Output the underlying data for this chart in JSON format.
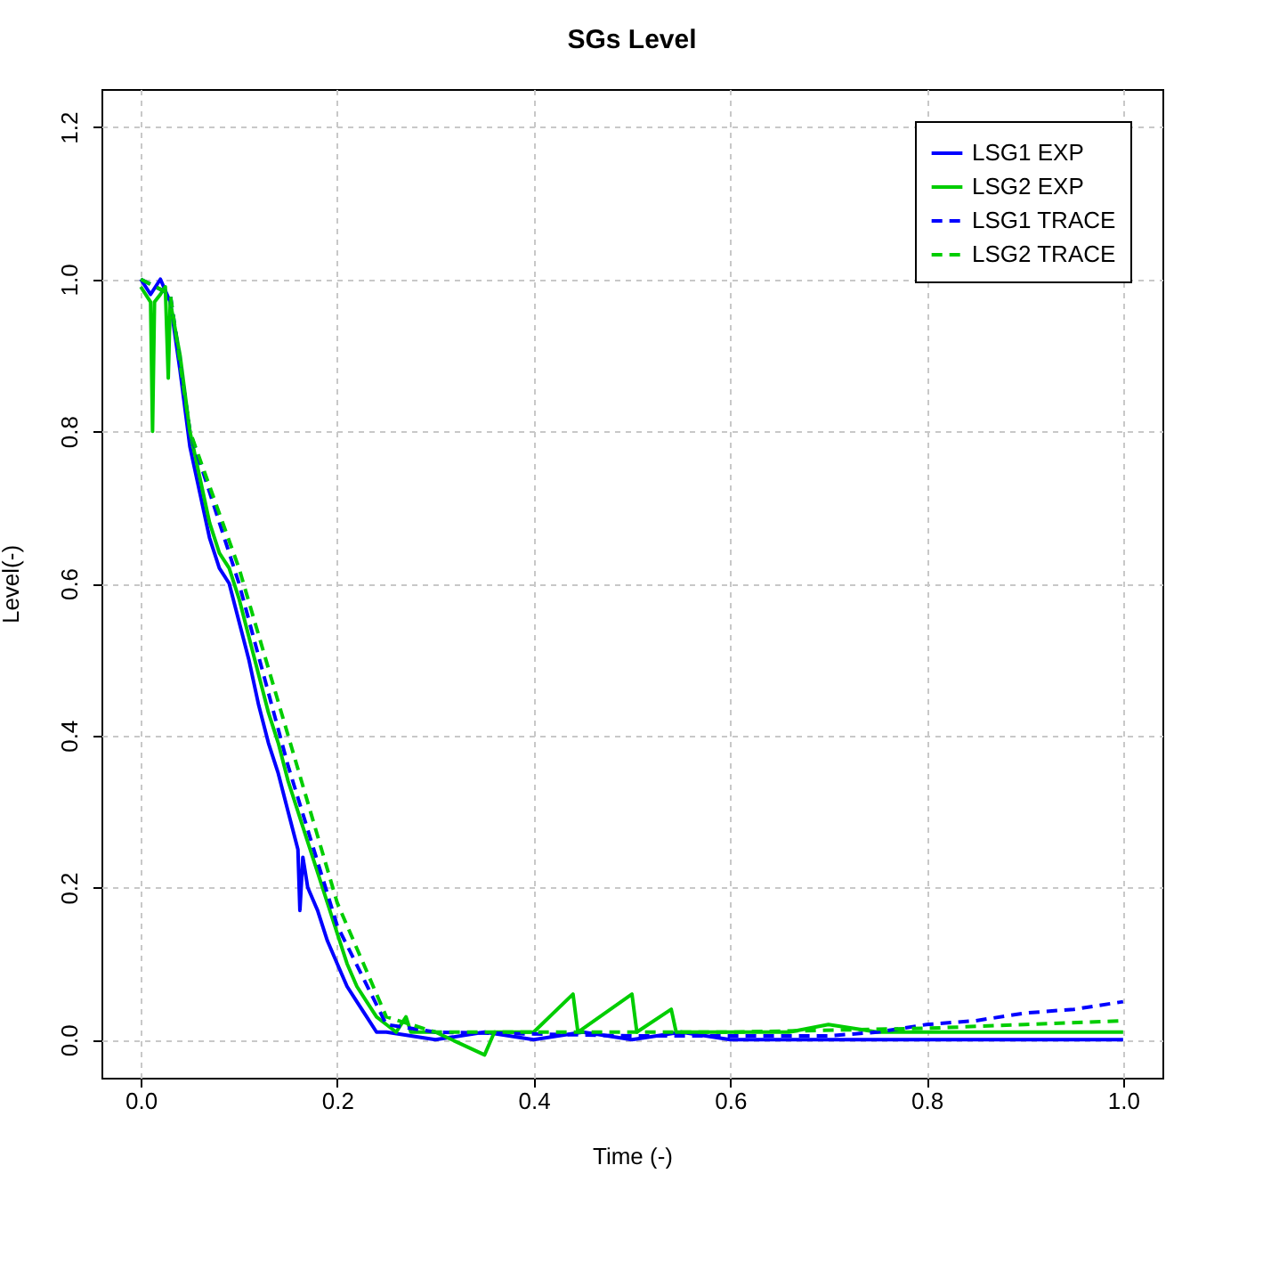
{
  "chart_data": {
    "type": "line",
    "title": "SGs Level",
    "xlabel": "Time (-)",
    "ylabel": "Level(-)",
    "xlim": [
      -0.04,
      1.04
    ],
    "ylim": [
      -0.05,
      1.25
    ],
    "xticks": [
      {
        "value": 0,
        "label": "0.0"
      },
      {
        "value": 0.2,
        "label": "0.2"
      },
      {
        "value": 0.4,
        "label": "0.4"
      },
      {
        "value": 0.6,
        "label": "0.6"
      },
      {
        "value": 0.8,
        "label": "0.8"
      },
      {
        "value": 1,
        "label": "1.0"
      }
    ],
    "yticks": [
      {
        "value": 0,
        "label": "0.0"
      },
      {
        "value": 0.2,
        "label": "0.2"
      },
      {
        "value": 0.4,
        "label": "0.4"
      },
      {
        "value": 0.6,
        "label": "0.6"
      },
      {
        "value": 0.8,
        "label": "0.8"
      },
      {
        "value": 1,
        "label": "1.0"
      },
      {
        "value": 1.2,
        "label": "1.2"
      }
    ],
    "grid": true,
    "legend": "top right",
    "series": [
      {
        "name": "LSG1 EXP",
        "color": "#0000ff",
        "line_style": "solid",
        "x": [
          0,
          0.01,
          0.02,
          0.03,
          0.04,
          0.05,
          0.06,
          0.07,
          0.08,
          0.09,
          0.1,
          0.11,
          0.12,
          0.13,
          0.14,
          0.15,
          0.16,
          0.162,
          0.165,
          0.17,
          0.18,
          0.19,
          0.2,
          0.21,
          0.22,
          0.23,
          0.24,
          0.25,
          0.3,
          0.35,
          0.4,
          0.45,
          0.5,
          0.55,
          0.6,
          0.7,
          0.8,
          0.9,
          1.0
        ],
        "values": [
          1.0,
          0.98,
          1.0,
          0.97,
          0.88,
          0.78,
          0.72,
          0.66,
          0.62,
          0.6,
          0.55,
          0.5,
          0.44,
          0.39,
          0.35,
          0.3,
          0.25,
          0.17,
          0.24,
          0.2,
          0.17,
          0.13,
          0.1,
          0.07,
          0.05,
          0.03,
          0.01,
          0.01,
          0.0,
          0.01,
          0.0,
          0.01,
          0.0,
          0.01,
          0.0,
          0.0,
          0.0,
          0.0,
          0.0
        ]
      },
      {
        "name": "LSG2 EXP",
        "color": "#00cd00",
        "line_style": "solid",
        "x": [
          0,
          0.01,
          0.012,
          0.014,
          0.02,
          0.025,
          0.028,
          0.03,
          0.04,
          0.05,
          0.06,
          0.07,
          0.08,
          0.09,
          0.1,
          0.11,
          0.12,
          0.13,
          0.14,
          0.15,
          0.16,
          0.17,
          0.18,
          0.19,
          0.2,
          0.21,
          0.22,
          0.23,
          0.24,
          0.25,
          0.26,
          0.27,
          0.275,
          0.3,
          0.35,
          0.36,
          0.4,
          0.44,
          0.445,
          0.5,
          0.505,
          0.54,
          0.545,
          0.6,
          0.66,
          0.7,
          0.75,
          0.8,
          0.9,
          1.0
        ],
        "values": [
          0.99,
          0.97,
          0.8,
          0.97,
          0.98,
          0.99,
          0.87,
          0.97,
          0.9,
          0.8,
          0.74,
          0.68,
          0.64,
          0.62,
          0.58,
          0.53,
          0.48,
          0.43,
          0.39,
          0.34,
          0.3,
          0.26,
          0.22,
          0.18,
          0.14,
          0.1,
          0.07,
          0.05,
          0.03,
          0.02,
          0.01,
          0.03,
          0.01,
          0.01,
          -0.02,
          0.01,
          0.01,
          0.06,
          0.01,
          0.06,
          0.01,
          0.04,
          0.01,
          0.01,
          0.01,
          0.02,
          0.01,
          0.01,
          0.01,
          0.01
        ]
      },
      {
        "name": "LSG1 TRACE",
        "color": "#0000ff",
        "line_style": "dashed",
        "x": [
          0,
          0.03,
          0.05,
          0.1,
          0.15,
          0.2,
          0.25,
          0.3,
          0.5,
          0.7,
          0.75,
          0.8,
          0.85,
          0.9,
          0.95,
          1.0
        ],
        "values": [
          1.0,
          0.98,
          0.8,
          0.6,
          0.36,
          0.15,
          0.02,
          0.01,
          0.005,
          0.005,
          0.01,
          0.02,
          0.025,
          0.035,
          0.04,
          0.05
        ]
      },
      {
        "name": "LSG2 TRACE",
        "color": "#00cd00",
        "line_style": "dashed",
        "x": [
          0,
          0.03,
          0.05,
          0.1,
          0.15,
          0.2,
          0.25,
          0.3,
          0.6,
          0.8,
          0.9,
          1.0
        ],
        "values": [
          1.0,
          0.98,
          0.8,
          0.62,
          0.4,
          0.18,
          0.03,
          0.01,
          0.01,
          0.015,
          0.02,
          0.025
        ]
      }
    ]
  }
}
